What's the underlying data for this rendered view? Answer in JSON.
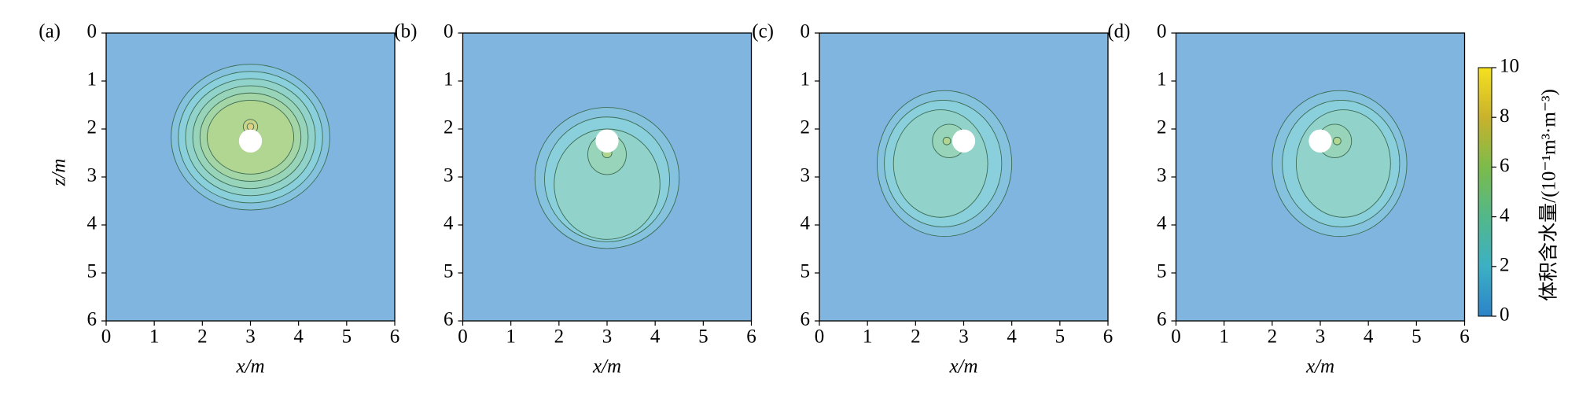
{
  "chart_data": [
    {
      "type": "contour",
      "panel_label": "(a)",
      "xlabel": "x/m",
      "ylabel": "z/m",
      "xlim": [
        0,
        6
      ],
      "ylim": [
        6,
        0
      ],
      "xticks": [
        0,
        1,
        2,
        3,
        4,
        5,
        6
      ],
      "yticks": [
        0,
        1,
        2,
        3,
        4,
        5,
        6
      ],
      "source": {
        "x": 3,
        "z": 2.25,
        "r": 0.24
      },
      "contours": [
        {
          "level": 1,
          "cx": 3,
          "cz": 2.17,
          "rx": 1.65,
          "rz": 1.52
        },
        {
          "level": 2,
          "cx": 3,
          "cz": 2.17,
          "rx": 1.5,
          "rz": 1.37
        },
        {
          "level": 3,
          "cx": 3,
          "cz": 2.17,
          "rx": 1.35,
          "rz": 1.22
        },
        {
          "level": 4,
          "cx": 3,
          "cz": 2.17,
          "rx": 1.2,
          "rz": 1.07
        },
        {
          "level": 5,
          "cx": 3,
          "cz": 2.17,
          "rx": 1.05,
          "rz": 0.92
        },
        {
          "level": 6,
          "cx": 3,
          "cz": 2.17,
          "rx": 0.9,
          "rz": 0.77
        },
        {
          "level": 7,
          "cx": 3,
          "cz": 1.95,
          "rx": 0.15,
          "rz": 0.15
        },
        {
          "level": 8,
          "cx": 3,
          "cz": 1.95,
          "rx": 0.07,
          "rz": 0.07
        }
      ]
    },
    {
      "type": "contour",
      "panel_label": "(b)",
      "xlabel": "x/m",
      "xlim": [
        0,
        6
      ],
      "ylim": [
        6,
        0
      ],
      "xticks": [
        0,
        1,
        2,
        3,
        4,
        5,
        6
      ],
      "yticks": [
        0,
        1,
        2,
        3,
        4,
        5,
        6
      ],
      "source": {
        "x": 3,
        "z": 2.25,
        "r": 0.24
      },
      "contours": [
        {
          "level": 1,
          "cx": 3,
          "cz": 3.02,
          "rx": 1.5,
          "rz": 1.47
        },
        {
          "level": 2,
          "cx": 3,
          "cz": 3.05,
          "rx": 1.3,
          "rz": 1.3
        },
        {
          "level": 3,
          "cx": 3,
          "cz": 3.15,
          "rx": 1.1,
          "rz": 1.15
        },
        {
          "level": 4,
          "cx": 3,
          "cz": 2.53,
          "rx": 0.4,
          "rz": 0.42
        },
        {
          "level": 6,
          "cx": 3,
          "cz": 2.5,
          "rx": 0.1,
          "rz": 0.1
        }
      ]
    },
    {
      "type": "contour",
      "panel_label": "(c)",
      "xlabel": "x/m",
      "xlim": [
        0,
        6
      ],
      "ylim": [
        6,
        0
      ],
      "xticks": [
        0,
        1,
        2,
        3,
        4,
        5,
        6
      ],
      "yticks": [
        0,
        1,
        2,
        3,
        4,
        5,
        6
      ],
      "source": {
        "x": 3,
        "z": 2.25,
        "r": 0.24
      },
      "contours": [
        {
          "level": 1,
          "cx": 2.6,
          "cz": 2.72,
          "rx": 1.4,
          "rz": 1.52
        },
        {
          "level": 2,
          "cx": 2.57,
          "cz": 2.72,
          "rx": 1.22,
          "rz": 1.32
        },
        {
          "level": 3,
          "cx": 2.52,
          "cz": 2.72,
          "rx": 0.98,
          "rz": 1.12
        },
        {
          "level": 4,
          "cx": 2.7,
          "cz": 2.25,
          "rx": 0.35,
          "rz": 0.35
        },
        {
          "level": 6,
          "cx": 2.65,
          "cz": 2.25,
          "rx": 0.08,
          "rz": 0.08
        }
      ]
    },
    {
      "type": "contour",
      "panel_label": "(d)",
      "xlabel": "x/m",
      "xlim": [
        0,
        6
      ],
      "ylim": [
        6,
        0
      ],
      "xticks": [
        0,
        1,
        2,
        3,
        4,
        5,
        6
      ],
      "yticks": [
        0,
        1,
        2,
        3,
        4,
        5,
        6
      ],
      "source": {
        "x": 3,
        "z": 2.25,
        "r": 0.24
      },
      "contours": [
        {
          "level": 1,
          "cx": 3.4,
          "cz": 2.72,
          "rx": 1.4,
          "rz": 1.52
        },
        {
          "level": 2,
          "cx": 3.43,
          "cz": 2.72,
          "rx": 1.22,
          "rz": 1.32
        },
        {
          "level": 3,
          "cx": 3.48,
          "cz": 2.72,
          "rx": 0.98,
          "rz": 1.12
        },
        {
          "level": 4,
          "cx": 3.3,
          "cz": 2.25,
          "rx": 0.35,
          "rz": 0.35
        },
        {
          "level": 6,
          "cx": 3.35,
          "cz": 2.25,
          "rx": 0.08,
          "rz": 0.08
        }
      ]
    },
    {
      "type": "colorbar",
      "label": "体积含水量/(10⁻¹m³·m⁻³)",
      "ylim": [
        0,
        10
      ],
      "yticks": [
        0,
        2,
        4,
        6,
        8,
        10
      ],
      "colormap": [
        "#2b83c9",
        "#3cb0c4",
        "#52b88a",
        "#7cbb4a",
        "#c9b22c",
        "#f5e11f"
      ],
      "map_opacity": 0.6
    }
  ]
}
